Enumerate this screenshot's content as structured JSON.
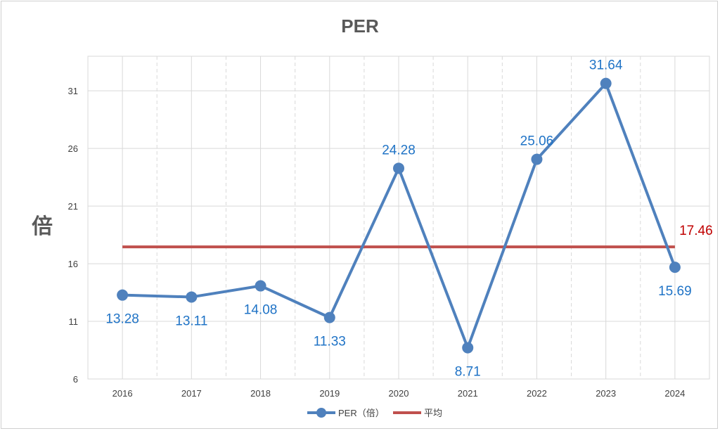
{
  "chart_data": {
    "type": "line",
    "title": "PER",
    "ylabel": "倍",
    "xlabel": "",
    "categories": [
      "2016",
      "2017",
      "2018",
      "2019",
      "2020",
      "2021",
      "2022",
      "2023",
      "2024"
    ],
    "ylim": [
      6,
      34
    ],
    "yticks": [
      6,
      11,
      16,
      21,
      26,
      31
    ],
    "grid": true,
    "legend_position": "bottom",
    "series": [
      {
        "name": "PER（倍）",
        "color": "#4f81bd",
        "values": [
          13.28,
          13.11,
          14.08,
          11.33,
          24.28,
          8.71,
          25.06,
          31.64,
          15.69
        ],
        "labels": [
          "13.28",
          "13.11",
          "14.08",
          "11.33",
          "24.28",
          "8.71",
          "25.06",
          "31.64",
          "15.69"
        ]
      },
      {
        "name": "平均",
        "color": "#c0504d",
        "values": [
          17.46,
          17.46,
          17.46,
          17.46,
          17.46,
          17.46,
          17.46,
          17.46,
          17.46
        ],
        "label": "17.46"
      }
    ]
  }
}
